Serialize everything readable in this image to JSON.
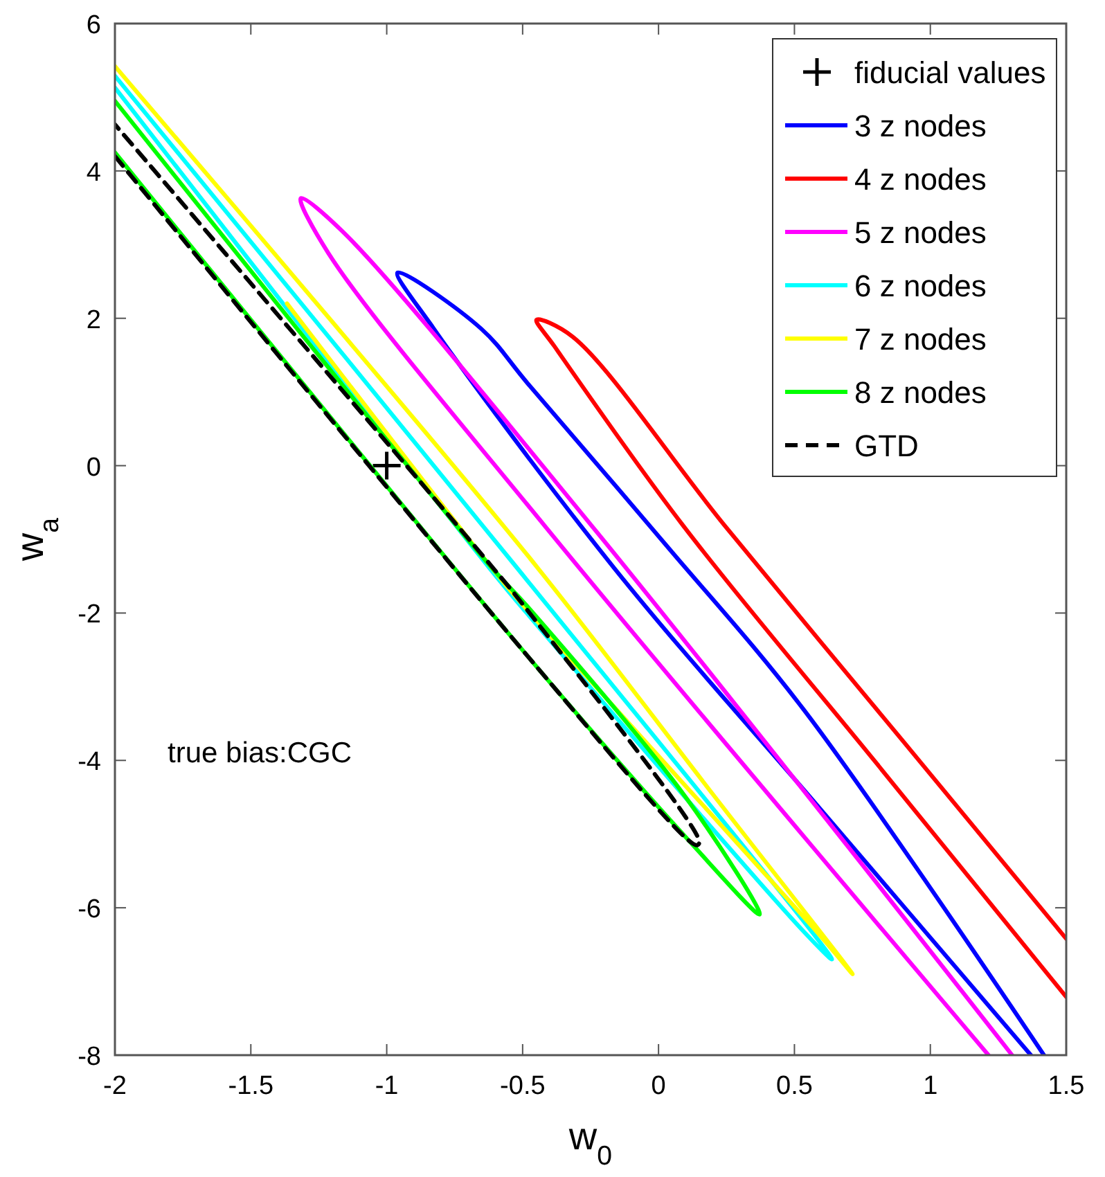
{
  "chart_data": {
    "type": "line",
    "xlabel": "w$_{0}$",
    "ylabel": "w$_{a}$",
    "xlim": [
      -2,
      1.5
    ],
    "ylim": [
      -8,
      6
    ],
    "xticks": [
      -2,
      -1.5,
      -1,
      -0.5,
      0,
      0.5,
      1,
      1.5
    ],
    "yticks": [
      -8,
      -6,
      -4,
      -2,
      0,
      2,
      4,
      6
    ],
    "grid": false,
    "legend": "top right",
    "annotations": [
      "true bias:CGC"
    ],
    "series": [
      {
        "name": "fiducial values",
        "type": "scatter",
        "marker": "cross",
        "color": "#000000",
        "x": [
          -1
        ],
        "values": [
          0
        ]
      },
      {
        "name": "3 z nodes",
        "color": "#0000ff",
        "line_style": "solid",
        "x": [
          1.37,
          0.6,
          -0.163,
          -0.827,
          -0.96,
          -0.653,
          -0.48,
          0.026,
          0.536,
          1.418
        ],
        "values": [
          -8,
          -4.68,
          -1.39,
          1.86,
          2.62,
          1.86,
          1.11,
          -1.07,
          -3.32,
          -8
        ]
      },
      {
        "name": "4 z nodes",
        "color": "#ff0000",
        "line_style": "solid",
        "x": [
          1.5,
          0.8,
          0.092,
          -0.383,
          -0.449,
          -0.316,
          0.245,
          0.9,
          1.5
        ],
        "values": [
          -7.21,
          -4.03,
          -0.82,
          1.62,
          1.98,
          1.75,
          -0.82,
          -3.74,
          -6.42
        ]
      },
      {
        "name": "5 z nodes",
        "color": "#ff00ff",
        "line_style": "solid",
        "x": [
          1.214,
          -0.418,
          -1.214,
          -1.316,
          -1.163,
          -0.245,
          1.301
        ],
        "values": [
          -8,
          -0.82,
          2.88,
          3.63,
          3.18,
          -0.82,
          -8
        ]
      },
      {
        "name": "6 z nodes",
        "color": "#00ffff",
        "line_style": "solid",
        "x": [
          -2,
          -1.367,
          -0.622,
          -0.485,
          0.536,
          0.638,
          -0.52,
          -2
        ],
        "values": [
          5.13,
          2.13,
          -1.39,
          -2.0,
          -6.33,
          -6.7,
          -1.39,
          5.29
        ]
      },
      {
        "name": "7 z nodes",
        "color": "#ffff00",
        "line_style": "solid",
        "x": [
          -1.367,
          -0.622,
          -0.485,
          0.6,
          0.714,
          0.2,
          -0.444,
          -1.2,
          -2
        ],
        "values": [
          2.2,
          -1.35,
          -1.95,
          -6.4,
          -6.9,
          -4.46,
          -1.39,
          1.95,
          5.42
        ]
      },
      {
        "name": "8 z nodes",
        "color": "#00ff00",
        "line_style": "solid",
        "x": [
          -2,
          -0.485,
          0.112,
          0.372,
          0.1,
          -0.485,
          -0.622,
          -2
        ],
        "values": [
          4.25,
          -2.57,
          -5.09,
          -6.09,
          -4.5,
          -1.9,
          -1.35,
          4.95
        ]
      },
      {
        "name": "GTD",
        "color": "#000000",
        "line_style": "dashed",
        "x": [
          -2,
          -0.485,
          0.112,
          0.143,
          0.15,
          -0.485,
          -0.622,
          -2
        ],
        "values": [
          4.2,
          -2.57,
          -5.09,
          -5.15,
          -5.1,
          -1.95,
          -1.33,
          4.63
        ]
      }
    ]
  }
}
